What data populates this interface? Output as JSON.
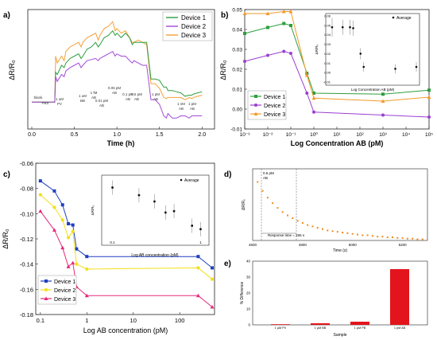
{
  "colors": {
    "device1": "#2e9e3e",
    "device2": "#9b3fd1",
    "device3": "#f39a2b",
    "a_device1": "#2e9e3e",
    "a_device2": "#a24bd8",
    "a_device3": "#f5a037",
    "c_device1": "#1f3fc0",
    "c_device2": "#f2df1a",
    "c_device3": "#e6287a",
    "d_series": "#f08a1e",
    "e_bar": "#e3141b",
    "axis": "#222222",
    "annot": "#333333"
  },
  "panel_a": {
    "label": "a)",
    "xlabel": "Time (h)",
    "ylabel": "ΔR/R₀",
    "xticks": [
      "0.0",
      "0.5",
      "1.0",
      "1.5",
      "2.0"
    ],
    "legend": [
      "Device 1",
      "Device 2",
      "Device 3"
    ],
    "annotations": [
      {
        "lines": [
          "blank"
        ]
      },
      {
        "lines": [
          "PBS"
        ]
      },
      {
        "lines": [
          "1 uM",
          "PV"
        ]
      },
      {
        "lines": [
          "1 uM",
          "BB"
        ]
      },
      {
        "lines": [
          "1 fM",
          "AB"
        ]
      },
      {
        "lines": [
          "0.01 pM",
          "AB"
        ]
      },
      {
        "lines": [
          "0.05 pM",
          "AB"
        ]
      },
      {
        "lines": [
          "0.1 pM",
          "AB"
        ]
      },
      {
        "lines": [
          "0.5 pM",
          "AB"
        ]
      },
      {
        "lines": [
          "1 pM",
          "AB"
        ]
      },
      {
        "lines": [
          "1 nM",
          "AB"
        ]
      },
      {
        "lines": [
          "1 pM",
          "AB"
        ]
      }
    ]
  },
  "panel_b": {
    "label": "b)",
    "xlabel": "Log Concentration AB (pM)",
    "ylabel": "ΔR/R₀",
    "xticks": [
      "10⁻³",
      "10⁻²",
      "10⁻¹",
      "10⁰",
      "10¹",
      "10²",
      "10³",
      "10⁴",
      "10⁵"
    ],
    "yticks": [
      "-0.01",
      "0.00",
      "0.01",
      "0.02",
      "0.03",
      "0.04",
      "0.05"
    ],
    "legend": [
      "Device 1",
      "Device 2",
      "Device 3"
    ],
    "inset": {
      "legend": "Average",
      "xlabel": "Log Concentration AB (pM)",
      "ylabel": "ΔR/R₀",
      "yticks": [
        "0.06",
        "0.05",
        "0.04",
        "0.03",
        "0.02",
        "0.01",
        "0.00",
        "-0.01"
      ]
    }
  },
  "panel_c": {
    "label": "c)",
    "xlabel": "Log AB concentration (pM)",
    "ylabel": "ΔR/R₀",
    "xticks": [
      "0.1",
      "1",
      "10",
      "100"
    ],
    "yticks": [
      "-0.06",
      "-0.08",
      "-0.10",
      "-0.12",
      "-0.14",
      "-0.16",
      "-0.18"
    ],
    "legend": [
      "Device 1",
      "Device 2",
      "Device 3"
    ],
    "inset": {
      "legend": "Average",
      "xlabel": "Log AB concentration (pM)",
      "ylabel": "ΔR/R₀",
      "xticks": [
        "0.1",
        "1"
      ]
    }
  },
  "panel_d": {
    "label": "d)",
    "annot1": "0.5 pM",
    "annot2": "AB",
    "response": "Response time = 265 s",
    "xlabel": "Time (s)",
    "ylabel": "ΔR/R₀",
    "xticks": [
      "4600",
      "4800",
      "5000",
      "5200"
    ]
  },
  "panel_e": {
    "label": "e)",
    "xlabel": "Sample",
    "ylabel": "% Difference",
    "yticks": [
      "0",
      "10",
      "20",
      "30",
      "40"
    ]
  },
  "chart_data": [
    {
      "panel": "a",
      "type": "line",
      "x": [
        0.0,
        0.04,
        0.08,
        0.1,
        0.12,
        0.15,
        0.18,
        0.2,
        0.23,
        0.27,
        0.28,
        0.3,
        0.35,
        0.38,
        0.4,
        0.45,
        0.5,
        0.55,
        0.58,
        0.6,
        0.65,
        0.7,
        0.75,
        0.78,
        0.8,
        0.85,
        0.9,
        0.95,
        0.98,
        1.0,
        1.05,
        1.1,
        1.15,
        1.18,
        1.2,
        1.25,
        1.3,
        1.35,
        1.4,
        1.45,
        1.5,
        1.55,
        1.58,
        1.6,
        1.65,
        1.7,
        1.75,
        1.8,
        1.85,
        1.88,
        1.9,
        1.95,
        2.0
      ],
      "series": [
        {
          "name": "Device 1",
          "values": [
            0.0,
            0.0,
            0.0,
            0.0,
            0.0,
            0.0,
            0.0,
            0.0,
            0.0,
            0.0,
            0.26,
            0.24,
            0.32,
            0.3,
            0.34,
            0.38,
            0.4,
            0.42,
            0.38,
            0.4,
            0.46,
            0.48,
            0.52,
            0.48,
            0.5,
            0.56,
            0.58,
            0.62,
            0.58,
            0.6,
            0.56,
            0.6,
            0.56,
            0.5,
            0.52,
            0.52,
            0.52,
            0.52,
            0.2,
            0.2,
            0.19,
            0.13,
            0.13,
            0.1,
            0.1,
            0.09,
            0.08,
            0.05,
            0.06,
            0.06,
            0.07,
            0.08,
            0.09
          ]
        },
        {
          "name": "Device 2",
          "values": [
            0.0,
            0.0,
            0.0,
            0.0,
            0.0,
            0.0,
            0.0,
            0.0,
            0.0,
            0.0,
            0.22,
            0.18,
            0.24,
            0.22,
            0.27,
            0.3,
            0.32,
            0.34,
            0.3,
            0.32,
            0.36,
            0.37,
            0.38,
            0.36,
            0.38,
            0.4,
            0.42,
            0.44,
            0.4,
            0.42,
            0.4,
            0.4,
            0.36,
            0.34,
            0.36,
            0.34,
            0.32,
            0.32,
            0.02,
            0.02,
            -0.02,
            -0.12,
            -0.14,
            -0.1,
            -0.14,
            -0.14,
            -0.12,
            -0.12,
            -0.14,
            -0.12,
            -0.12,
            -0.12,
            -0.12
          ]
        },
        {
          "name": "Device 3",
          "values": [
            0.0,
            0.0,
            0.0,
            0.0,
            0.0,
            0.0,
            0.0,
            0.0,
            0.0,
            0.0,
            0.4,
            0.34,
            0.4,
            0.36,
            0.44,
            0.48,
            0.5,
            0.52,
            0.48,
            0.52,
            0.56,
            0.58,
            0.6,
            0.54,
            0.58,
            0.64,
            0.66,
            0.7,
            0.62,
            0.64,
            0.6,
            0.62,
            0.56,
            0.52,
            0.52,
            0.54,
            0.52,
            0.5,
            0.16,
            0.16,
            0.12,
            0.04,
            0.03,
            0.04,
            0.04,
            0.04,
            0.04,
            0.02,
            0.04,
            0.03,
            0.04,
            0.05,
            0.06
          ]
        }
      ]
    },
    {
      "panel": "b",
      "type": "line",
      "x_scale": "log",
      "x": [
        0.001,
        0.01,
        0.05,
        0.1,
        0.5,
        1,
        1000,
        100000
      ],
      "ylim": [
        -0.01,
        0.05
      ],
      "series": [
        {
          "name": "Device 1",
          "values": [
            0.038,
            0.041,
            0.043,
            0.042,
            0.018,
            0.008,
            0.0075,
            0.0095
          ]
        },
        {
          "name": "Device 2",
          "values": [
            0.024,
            0.027,
            0.029,
            0.028,
            0.008,
            -0.0015,
            -0.003,
            -0.004
          ]
        },
        {
          "name": "Device 3",
          "values": [
            0.048,
            0.048,
            0.049,
            0.049,
            0.017,
            0.0055,
            0.004,
            0.006
          ]
        }
      ],
      "inset": {
        "type": "scatter",
        "x_scale": "log",
        "x": [
          0.001,
          0.01,
          0.05,
          0.1,
          0.5,
          1,
          1000,
          100000
        ],
        "values": [
          0.048,
          0.048,
          0.048,
          0.047,
          0.02,
          0.006,
          0.004,
          0.006
        ],
        "errors": [
          0.01,
          0.008,
          0.008,
          0.008,
          0.006,
          0.005,
          0.005,
          0.005
        ]
      }
    },
    {
      "panel": "c",
      "type": "line",
      "x_scale": "log",
      "x": [
        0.1,
        0.2,
        0.3,
        0.4,
        0.5,
        0.6,
        1,
        250,
        500
      ],
      "ylim": [
        -0.18,
        -0.06
      ],
      "series": [
        {
          "name": "Device 1",
          "values": [
            -0.074,
            -0.082,
            -0.093,
            -0.108,
            -0.109,
            -0.128,
            -0.134,
            -0.134,
            -0.143
          ]
        },
        {
          "name": "Device 2",
          "values": [
            -0.085,
            -0.095,
            -0.105,
            -0.119,
            -0.114,
            -0.14,
            -0.144,
            -0.143,
            -0.152
          ]
        },
        {
          "name": "Device 3",
          "values": [
            -0.098,
            -0.113,
            -0.127,
            -0.142,
            -0.139,
            -0.158,
            -0.165,
            -0.165,
            -0.174
          ]
        }
      ],
      "inset": {
        "type": "scatter",
        "x_scale": "log",
        "x": [
          0.1,
          0.2,
          0.3,
          0.4,
          0.5,
          0.8,
          1.0
        ],
        "values": [
          -0.086,
          -0.097,
          -0.106,
          -0.122,
          -0.12,
          -0.141,
          -0.146
        ]
      }
    },
    {
      "panel": "d",
      "type": "scatter",
      "x": [
        4620,
        4640,
        4660,
        4680,
        4700,
        4720,
        4740,
        4760,
        4780,
        4800,
        4820,
        4840,
        4860,
        4880,
        4900,
        4920,
        4940,
        4960,
        4980,
        5000,
        5020,
        5040,
        5060,
        5080,
        5100,
        5120,
        5140,
        5160,
        5180,
        5200,
        5220,
        5240,
        5260,
        5280
      ],
      "values": [
        0.95,
        0.82,
        0.72,
        0.64,
        0.57,
        0.51,
        0.46,
        0.42,
        0.38,
        0.35,
        0.32,
        0.3,
        0.28,
        0.26,
        0.24,
        0.23,
        0.22,
        0.21,
        0.2,
        0.19,
        0.18,
        0.17,
        0.17,
        0.16,
        0.15,
        0.15,
        0.14,
        0.14,
        0.13,
        0.13,
        0.12,
        0.12,
        0.11,
        0.11
      ]
    },
    {
      "panel": "e",
      "type": "bar",
      "categories": [
        "1 μM PV",
        "1 μM BB",
        "1 μM PB",
        "1 pM AB"
      ],
      "values": [
        0.4,
        1.0,
        2.0,
        35.0
      ],
      "ylim": [
        0,
        40
      ]
    }
  ]
}
